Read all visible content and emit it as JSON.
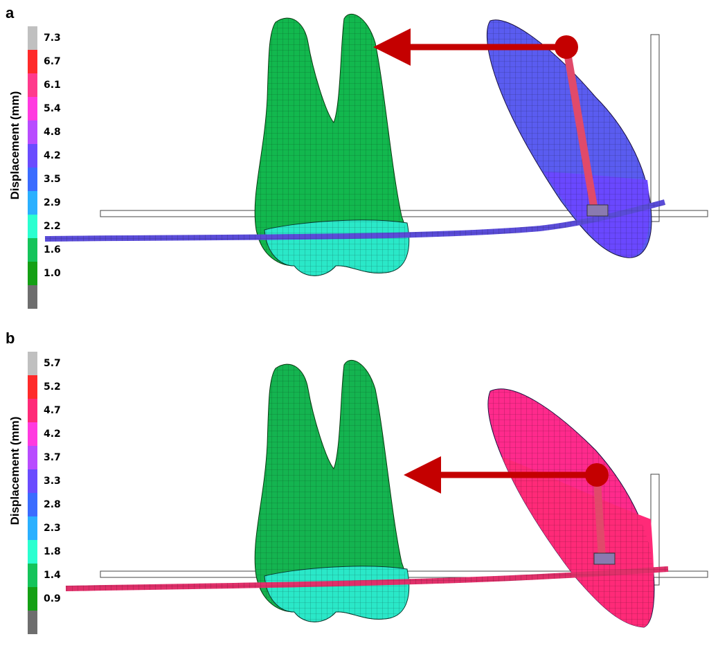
{
  "panels": [
    {
      "id": "a",
      "letter": "a",
      "legend_title": "Displacement (mm)",
      "ticks": [
        "7.3",
        "6.7",
        "6.1",
        "5.4",
        "4.8",
        "4.2",
        "3.5",
        "2.9",
        "2.2",
        "1.6",
        "1.0"
      ],
      "swatches": [
        "#c0c0c0",
        "#ff2a2a",
        "#ff3a8c",
        "#ff3ae0",
        "#b84cff",
        "#6a4cff",
        "#3a6cff",
        "#2ab0ff",
        "#2affd0",
        "#14c45a",
        "#14a014",
        "#6e6e6e"
      ],
      "mover_color": "#5a5cf0",
      "mover_lower_color": "#6a48ff",
      "wire_color": "#5a4cd8",
      "anchor_color": "#12b84e",
      "anchor_crown_color": "#2ae8c8"
    },
    {
      "id": "b",
      "letter": "b",
      "legend_title": "Displacement (mm)",
      "ticks": [
        "5.7",
        "5.2",
        "4.7",
        "4.2",
        "3.7",
        "3.3",
        "2.8",
        "2.3",
        "1.8",
        "1.4",
        "0.9"
      ],
      "swatches": [
        "#c0c0c0",
        "#ff2a2a",
        "#ff2a78",
        "#ff3ae0",
        "#b84cff",
        "#6a4cff",
        "#3a6cff",
        "#2ab0ff",
        "#2affd0",
        "#14c45a",
        "#14a014",
        "#6e6e6e"
      ],
      "mover_color": "#ff2a8c",
      "mover_lower_color": "#ff2a78",
      "wire_color": "#e0306a",
      "anchor_color": "#14b450",
      "anchor_crown_color": "#2ae8c8"
    }
  ],
  "force_arrow_color": "#c40000"
}
